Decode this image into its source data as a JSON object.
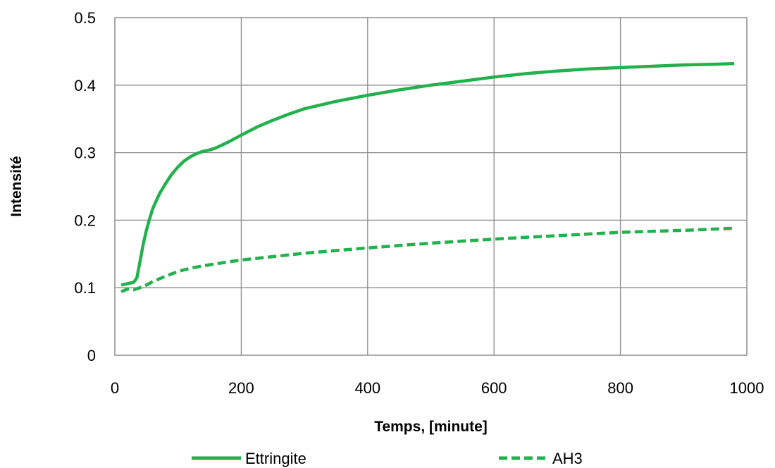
{
  "chart_data": {
    "type": "line",
    "xlabel": "Temps, [minute]",
    "ylabel": "Intensité",
    "xlim": [
      0,
      1000
    ],
    "ylim": [
      0,
      0.5
    ],
    "xticks": [
      "0",
      "200",
      "400",
      "600",
      "800",
      "1000"
    ],
    "yticks": [
      "0",
      "0.1",
      "0.2",
      "0.3",
      "0.4",
      "0.5"
    ],
    "grid": true,
    "legend_position": "bottom",
    "series": [
      {
        "name": "Ettringite",
        "color": "#22b14c",
        "line_style": "solid",
        "x": [
          10,
          20,
          30,
          35,
          40,
          45,
          50,
          55,
          60,
          70,
          80,
          90,
          100,
          110,
          120,
          130,
          140,
          150,
          160,
          180,
          200,
          225,
          250,
          275,
          300,
          350,
          400,
          450,
          500,
          550,
          600,
          650,
          700,
          750,
          800,
          850,
          900,
          950,
          980
        ],
        "y": [
          0.104,
          0.106,
          0.108,
          0.115,
          0.14,
          0.165,
          0.185,
          0.202,
          0.217,
          0.238,
          0.254,
          0.268,
          0.279,
          0.288,
          0.294,
          0.299,
          0.302,
          0.304,
          0.307,
          0.316,
          0.326,
          0.338,
          0.348,
          0.357,
          0.365,
          0.376,
          0.385,
          0.393,
          0.4,
          0.406,
          0.412,
          0.417,
          0.421,
          0.424,
          0.426,
          0.428,
          0.43,
          0.431,
          0.432
        ]
      },
      {
        "name": "AH3",
        "color": "#22b14c",
        "line_style": "dashed",
        "x": [
          10,
          20,
          30,
          40,
          50,
          60,
          80,
          100,
          120,
          150,
          200,
          250,
          300,
          400,
          500,
          600,
          700,
          800,
          900,
          980
        ],
        "y": [
          0.094,
          0.098,
          0.097,
          0.1,
          0.104,
          0.109,
          0.117,
          0.124,
          0.129,
          0.134,
          0.141,
          0.146,
          0.151,
          0.159,
          0.166,
          0.172,
          0.177,
          0.182,
          0.185,
          0.188
        ]
      }
    ]
  }
}
